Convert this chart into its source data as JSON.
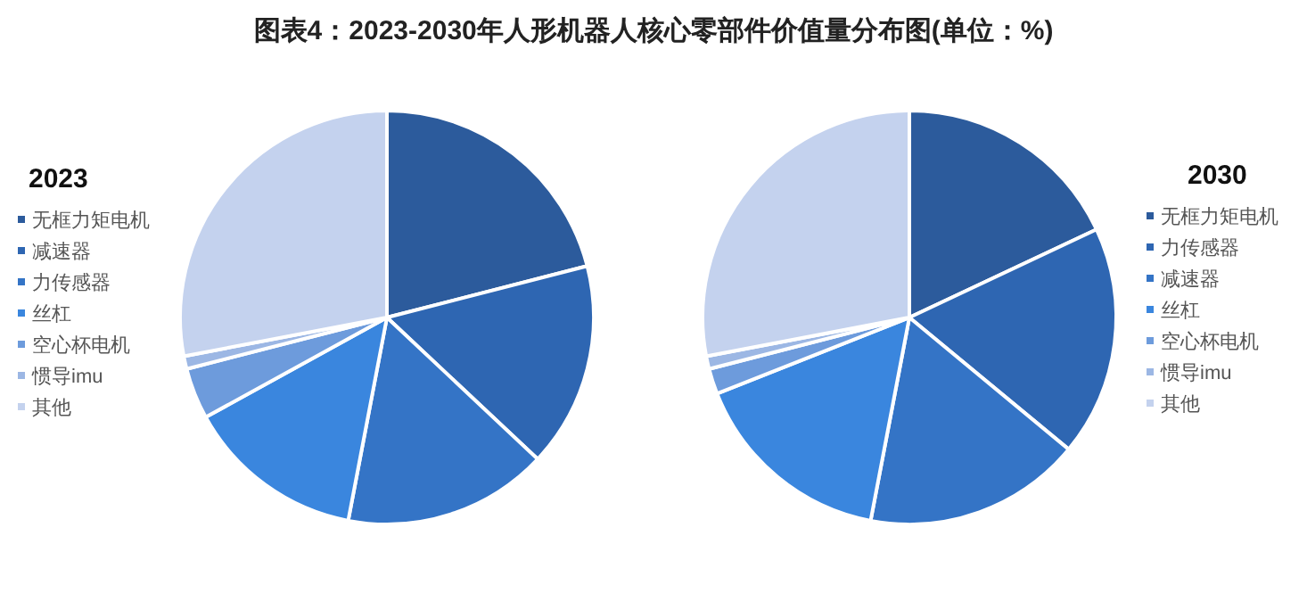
{
  "chart_data": [
    {
      "type": "pie",
      "title": "图表4：2023-2030年人形机器人核心零部件价值量分布图(单位：%)",
      "legend_title": "2023",
      "legend": "left",
      "categories": [
        "无框力矩电机",
        "减速器",
        "力传感器",
        "丝杠",
        "空心杯电机",
        "惯导imu",
        "其他"
      ],
      "values": [
        21,
        16,
        16,
        14,
        4,
        1,
        28
      ],
      "colors": [
        "#2c5b9c",
        "#2e66b2",
        "#3474c6",
        "#3a86de",
        "#6d9bdc",
        "#9cb7e4",
        "#c4d2ee"
      ]
    },
    {
      "type": "pie",
      "legend_title": "2030",
      "legend": "right",
      "categories": [
        "无框力矩电机",
        "力传感器",
        "减速器",
        "丝杠",
        "空心杯电机",
        "惯导imu",
        "其他"
      ],
      "values": [
        18,
        18,
        17,
        16,
        2,
        1,
        28
      ],
      "colors": [
        "#2c5b9c",
        "#2e66b2",
        "#3474c6",
        "#3a86de",
        "#6d9bdc",
        "#9cb7e4",
        "#c4d2ee"
      ]
    }
  ]
}
